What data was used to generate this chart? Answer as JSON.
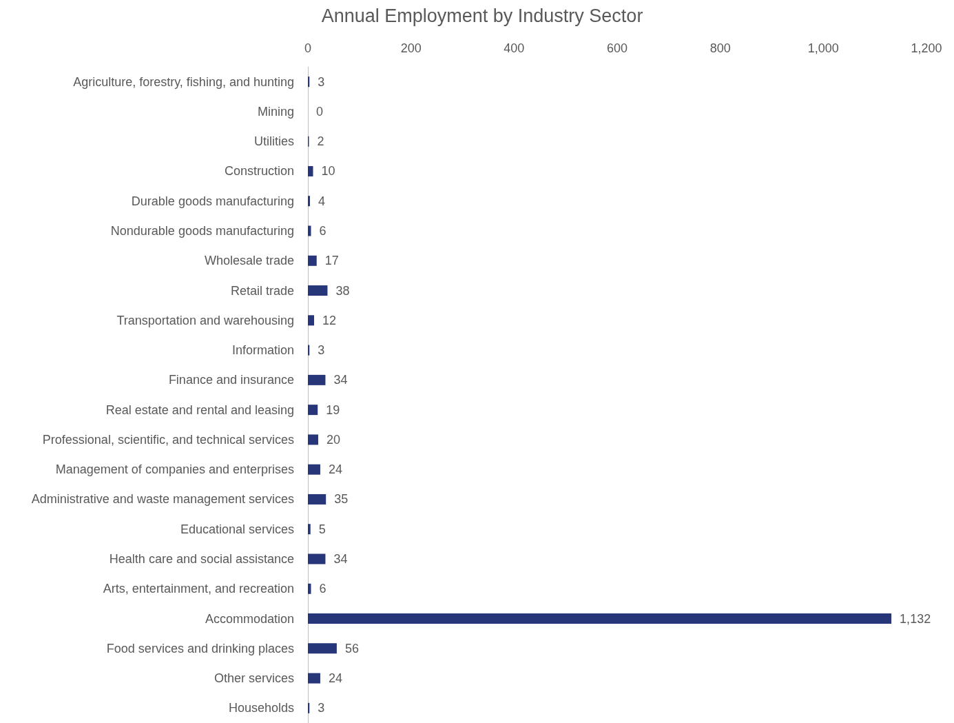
{
  "chart_data": {
    "type": "bar",
    "orientation": "horizontal",
    "title": "Annual Employment by Industry Sector",
    "categories": [
      "Agriculture, forestry, fishing, and hunting",
      "Mining",
      "Utilities",
      "Construction",
      "Durable goods manufacturing",
      "Nondurable goods manufacturing",
      "Wholesale trade",
      "Retail trade",
      "Transportation and warehousing",
      "Information",
      "Finance and insurance",
      "Real estate and rental and leasing",
      "Professional, scientific, and technical services",
      "Management of companies and enterprises",
      "Administrative and waste management services",
      "Educational services",
      "Health care and social assistance",
      "Arts, entertainment, and recreation",
      "Accommodation",
      "Food services and drinking places",
      "Other services",
      "Households"
    ],
    "values": [
      3,
      0,
      2,
      10,
      4,
      6,
      17,
      38,
      12,
      3,
      34,
      19,
      20,
      24,
      35,
      5,
      34,
      6,
      1132,
      56,
      24,
      3
    ],
    "value_labels": [
      "3",
      "0",
      "2",
      "10",
      "4",
      "6",
      "17",
      "38",
      "12",
      "3",
      "34",
      "19",
      "20",
      "24",
      "35",
      "5",
      "34",
      "6",
      "1,132",
      "56",
      "24",
      "3"
    ],
    "color": "#263678",
    "xlim": [
      0,
      1200
    ],
    "xticks": [
      0,
      200,
      400,
      600,
      800,
      {
        "value": 1000,
        "label": "1,000"
      },
      {
        "value": 1200,
        "label": "1,200"
      }
    ],
    "grid": false
  }
}
